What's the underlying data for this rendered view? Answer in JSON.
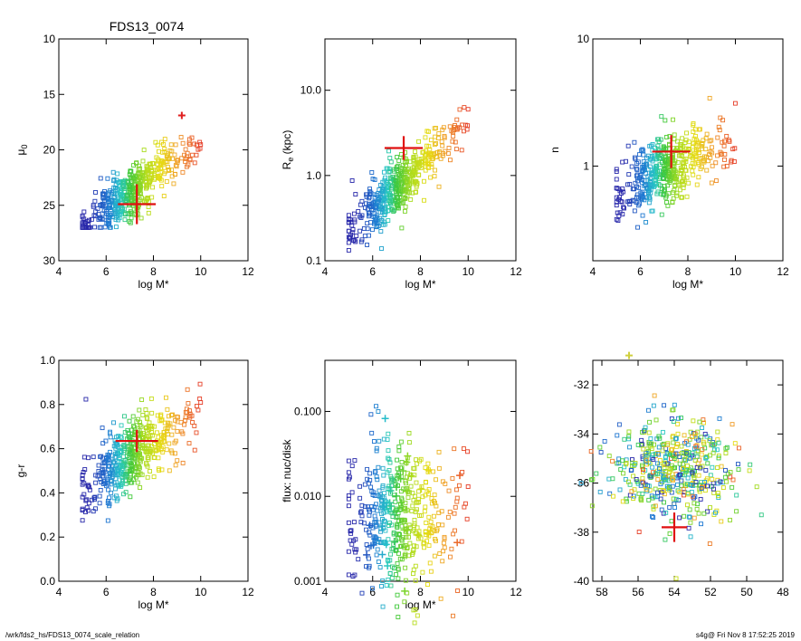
{
  "header": {
    "title": "FDS13_0074"
  },
  "footer": {
    "path": "/wrk/fds2_hs/FDS13_0074_scale_relation",
    "stamp": "s4g@  Fri Nov  8 17:52:25 2019"
  },
  "chart_data": [
    {
      "type": "scatter",
      "panel": "mu0",
      "title": "FDS13_0074",
      "xlabel": "log M*",
      "ylabel": "μ0",
      "xlim": [
        4,
        12
      ],
      "ylim": [
        30,
        10
      ],
      "y_inverted": true,
      "xticks": [
        "4",
        "6",
        "8",
        "10",
        "12"
      ],
      "yticks": [
        "10",
        "15",
        "20",
        "25",
        "30"
      ],
      "highlight": {
        "x": 7.3,
        "y": 24.9,
        "size_x": 0.8,
        "size_y": 1.8
      },
      "extra_points": [
        {
          "x": 9.2,
          "y": 16.9,
          "marker": "star",
          "color": "#e02020"
        }
      ],
      "series_note": "~500 dwarf galaxies, colored by log M* (blue low → red high)"
    },
    {
      "type": "scatter",
      "panel": "re",
      "xlabel": "log M*",
      "ylabel": "Re (kpc)",
      "ylabel_main": "R",
      "ylabel_sub": "e",
      "ylabel_rest": " (kpc)",
      "xlim": [
        4,
        12
      ],
      "ylim": [
        0.1,
        40
      ],
      "yscale": "log",
      "xticks": [
        "4",
        "6",
        "8",
        "10",
        "12"
      ],
      "yticks": [
        "0.1",
        "1.0",
        "10.0"
      ],
      "highlight": {
        "x": 7.3,
        "y": 2.1,
        "size_x": 0.8,
        "size_y_dex": 0.14
      }
    },
    {
      "type": "scatter",
      "panel": "n",
      "xlabel": "log M*",
      "ylabel": "n",
      "xlim": [
        4,
        12
      ],
      "ylim": [
        0.18,
        10
      ],
      "yscale": "log",
      "xticks": [
        "4",
        "6",
        "8",
        "10",
        "12"
      ],
      "yticks": [
        "1",
        "10"
      ],
      "highlight": {
        "x": 7.3,
        "y": 1.3,
        "size_x": 0.8,
        "size_y_dex": 0.13
      }
    },
    {
      "type": "scatter",
      "panel": "gr",
      "xlabel": "log M*",
      "ylabel": "g-r",
      "xlim": [
        4,
        12
      ],
      "ylim": [
        0.0,
        1.0
      ],
      "xticks": [
        "4",
        "6",
        "8",
        "10",
        "12"
      ],
      "yticks": [
        "0.0",
        "0.2",
        "0.4",
        "0.6",
        "0.8",
        "1.0"
      ],
      "highlight": {
        "x": 7.3,
        "y": 0.635,
        "size_x": 0.9,
        "size_y": 0.05
      }
    },
    {
      "type": "scatter",
      "panel": "flux",
      "xlabel": "log M*",
      "ylabel": "flux: nuc/disk",
      "xlim": [
        4,
        12
      ],
      "ylim": [
        0.001,
        0.4
      ],
      "yscale": "log",
      "xticks": [
        "4",
        "6",
        "8",
        "10",
        "12"
      ],
      "yticks": [
        "0.001",
        "0.010",
        "0.100"
      ],
      "extra_points_note": "nucleated galaxies marked with stars"
    },
    {
      "type": "scatter",
      "panel": "sky",
      "xlabel": "",
      "ylabel": "",
      "xlim": [
        58.5,
        48
      ],
      "ylim": [
        -40,
        -31
      ],
      "xticks": [
        "58",
        "56",
        "54",
        "52",
        "50",
        "48"
      ],
      "yticks": [
        "-32",
        "-34",
        "-36",
        "-38",
        "-40"
      ],
      "highlight": {
        "x": 54.0,
        "y": -37.8,
        "size_x": 0.7,
        "size_y": 0.6
      },
      "extra_points": [
        {
          "x": 56.5,
          "y": -30.8,
          "marker": "star",
          "color": "#d0d040"
        }
      ]
    }
  ]
}
